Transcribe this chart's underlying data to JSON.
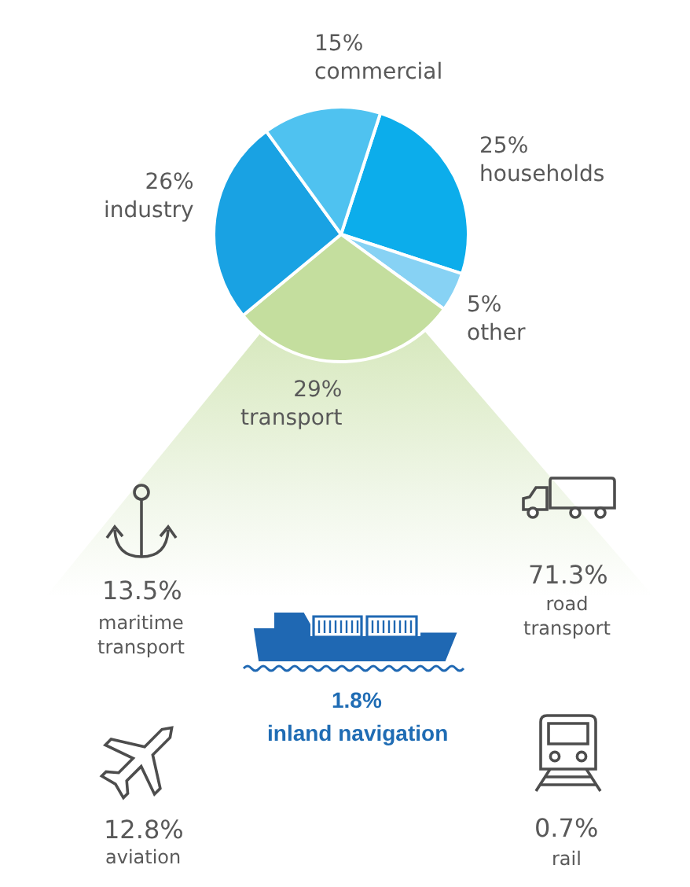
{
  "chart_data": [
    {
      "type": "pie",
      "categories": [
        "households",
        "other",
        "transport",
        "industry",
        "commercial"
      ],
      "values": [
        25,
        5,
        29,
        26,
        15
      ],
      "value_labels": [
        "25%",
        "5%",
        "29%",
        "26%",
        "15%"
      ],
      "colors": [
        "#0cadeb",
        "#87d2f4",
        "#c4de9e",
        "#19a2e3",
        "#4fc2f0"
      ]
    },
    {
      "type": "other",
      "categories": [
        "maritime\ntransport",
        "road\ntransport",
        "inland navigation",
        "aviation",
        "rail"
      ],
      "values": [
        13.5,
        71.3,
        1.8,
        12.8,
        0.7
      ],
      "value_labels": [
        "13.5%",
        "71.3%",
        "1.8%",
        "12.8%",
        "0.7%"
      ],
      "colors": [
        "#595959",
        "#595959",
        "#1f6cb4",
        "#595959",
        "#595959"
      ]
    }
  ]
}
